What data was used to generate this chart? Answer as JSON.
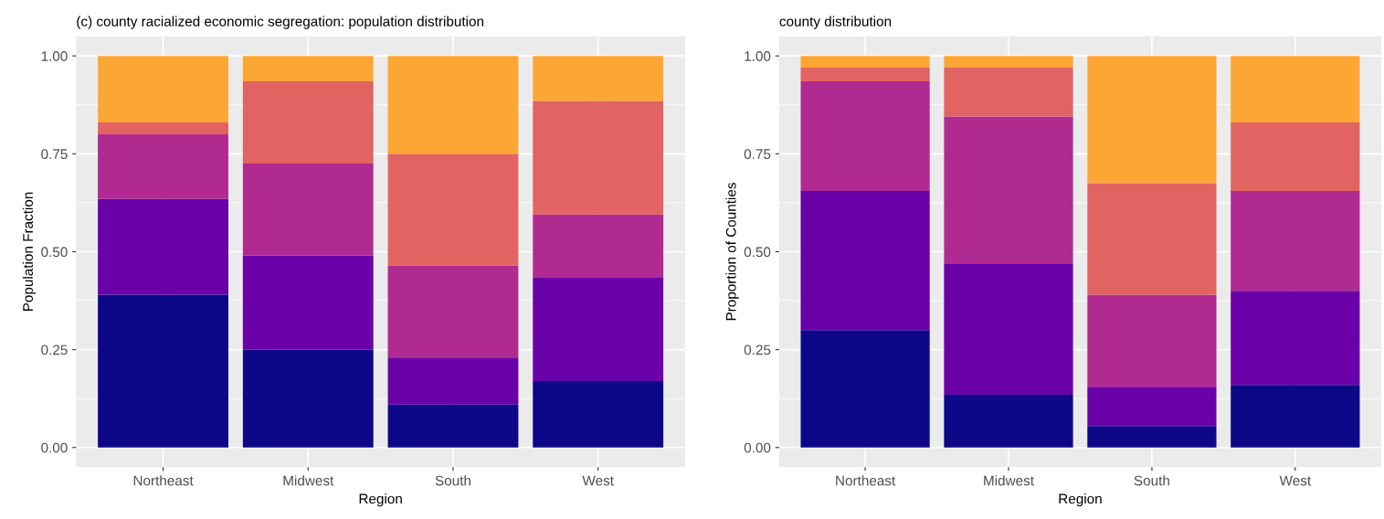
{
  "chart_data": [
    {
      "type": "bar",
      "stacked": true,
      "title": "(c) county racialized economic segregation: population distribution",
      "xlabel": "Region",
      "ylabel": "Population Fraction",
      "categories": [
        "Northeast",
        "Midwest",
        "South",
        "West"
      ],
      "ylim": [
        -0.05,
        1.05
      ],
      "yticks": [
        {
          "value": 0,
          "label": "0.00"
        },
        {
          "value": 0.25,
          "label": "0.25"
        },
        {
          "value": 0.5,
          "label": "0.50"
        },
        {
          "value": 0.75,
          "label": "0.75"
        },
        {
          "value": 1,
          "label": "1.00"
        }
      ],
      "grid": true,
      "legend": false,
      "series": [
        {
          "color": "#0d0887",
          "values": [
            0.39,
            0.25,
            0.11,
            0.17
          ]
        },
        {
          "color": "#6a00a8",
          "values": [
            0.245,
            0.24,
            0.12,
            0.265
          ]
        },
        {
          "color": "#b12a90",
          "values": [
            0.165,
            0.235,
            0.235,
            0.16
          ]
        },
        {
          "color": "#e16462",
          "values": [
            0.03,
            0.21,
            0.285,
            0.29
          ]
        },
        {
          "color": "#fca636",
          "values": [
            0.17,
            0.065,
            0.25,
            0.115
          ]
        }
      ]
    },
    {
      "type": "bar",
      "stacked": true,
      "title": "county distribution",
      "xlabel": "Region",
      "ylabel": "Proportion of Counties",
      "categories": [
        "Northeast",
        "Midwest",
        "South",
        "West"
      ],
      "ylim": [
        -0.05,
        1.05
      ],
      "yticks": [
        {
          "value": 0,
          "label": "0.00"
        },
        {
          "value": 0.25,
          "label": "0.25"
        },
        {
          "value": 0.5,
          "label": "0.50"
        },
        {
          "value": 0.75,
          "label": "0.75"
        },
        {
          "value": 1,
          "label": "1.00"
        }
      ],
      "grid": true,
      "legend": false,
      "series": [
        {
          "color": "#0d0887",
          "values": [
            0.3,
            0.135,
            0.055,
            0.16
          ]
        },
        {
          "color": "#6a00a8",
          "values": [
            0.355,
            0.335,
            0.1,
            0.24
          ]
        },
        {
          "color": "#b12a90",
          "values": [
            0.28,
            0.375,
            0.235,
            0.255
          ]
        },
        {
          "color": "#e16462",
          "values": [
            0.035,
            0.125,
            0.285,
            0.175
          ]
        },
        {
          "color": "#fca636",
          "values": [
            0.03,
            0.03,
            0.325,
            0.17
          ]
        }
      ]
    }
  ]
}
